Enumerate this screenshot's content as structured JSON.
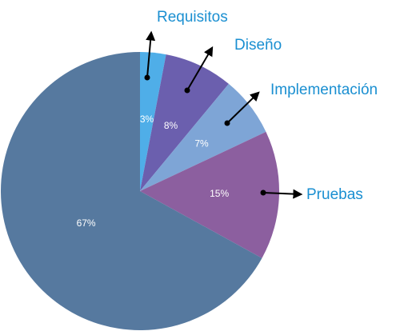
{
  "chart_data": {
    "type": "pie",
    "start_angle_deg": 0,
    "direction": "clockwise",
    "slices": [
      {
        "label": "Requisitos",
        "value": 3,
        "value_label": "3%",
        "color": "#4faee8",
        "callout": true
      },
      {
        "label": "Diseño",
        "value": 8,
        "value_label": "8%",
        "color": "#6b5fae",
        "callout": true
      },
      {
        "label": "Implementación",
        "value": 7,
        "value_label": "7%",
        "color": "#7ea5d6",
        "callout": true
      },
      {
        "label": "Pruebas",
        "value": 15,
        "value_label": "15%",
        "color": "#8c5f9f",
        "callout": true
      },
      {
        "label": "",
        "value": 67,
        "value_label": "67%",
        "color": "#56799f",
        "callout": false
      }
    ]
  }
}
